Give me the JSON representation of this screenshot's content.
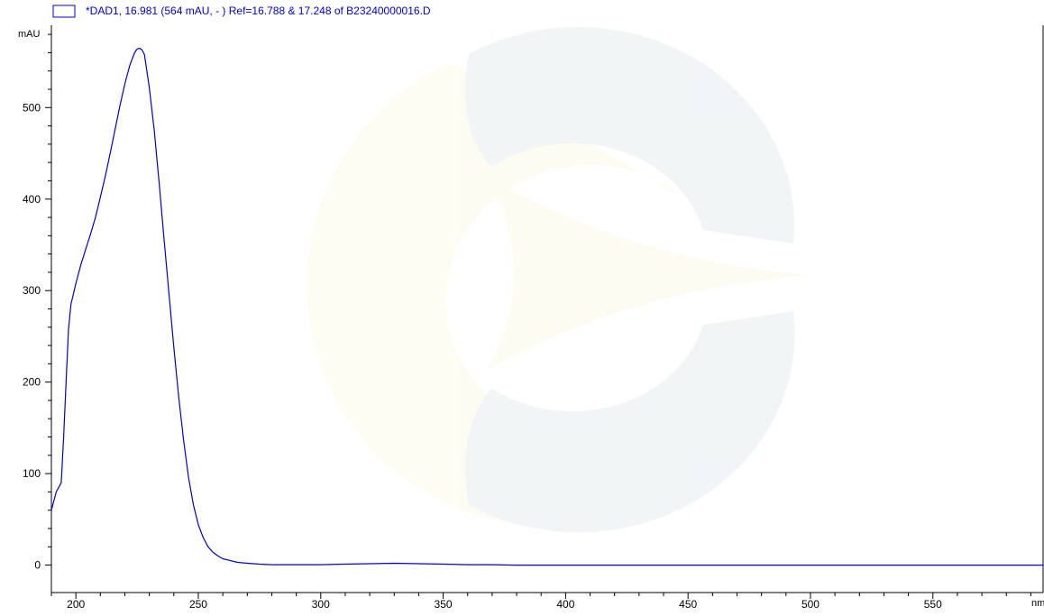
{
  "chart_data": {
    "type": "line",
    "legend": {
      "placement": "top-left",
      "text": "*DAD1, 16.981 (564 mAU, - ) Ref=16.788 & 17.248 of B23240000016.D",
      "color": "#0000cc"
    },
    "ylabel": "mAU",
    "xlabel": "nm",
    "xlim": [
      190,
      595
    ],
    "ylim": [
      -30,
      590
    ],
    "x_ticks": [
      200,
      250,
      300,
      350,
      400,
      450,
      500,
      550
    ],
    "y_ticks": [
      0,
      100,
      200,
      300,
      400,
      500
    ],
    "x_minor_step": 10,
    "y_minor_step": 20,
    "grid": false,
    "series": [
      {
        "color": "#0000cc",
        "x": [
          190,
          192,
          194,
          195,
          196,
          197,
          198,
          200,
          202,
          204,
          206,
          208,
          210,
          212,
          214,
          216,
          218,
          220,
          222,
          224,
          225,
          226,
          227,
          228,
          230,
          232,
          234,
          236,
          238,
          240,
          242,
          244,
          246,
          248,
          250,
          252,
          254,
          256,
          258,
          260,
          263,
          266,
          270,
          275,
          280,
          285,
          290,
          300,
          310,
          320,
          330,
          340,
          350,
          360,
          370,
          380,
          400,
          450,
          500,
          550,
          595
        ],
        "y": [
          60,
          80,
          90,
          140,
          200,
          258,
          285,
          308,
          328,
          345,
          362,
          380,
          402,
          425,
          450,
          476,
          502,
          526,
          546,
          560,
          564,
          565,
          563,
          558,
          522,
          475,
          418,
          357,
          297,
          238,
          184,
          136,
          96,
          66,
          44,
          30,
          20,
          14,
          10,
          7,
          5,
          3,
          2,
          1,
          0.5,
          0.5,
          0.5,
          0.5,
          1,
          1.5,
          2,
          1.5,
          1,
          0.5,
          0.5,
          0,
          0,
          0,
          0,
          0,
          0
        ]
      }
    ]
  }
}
